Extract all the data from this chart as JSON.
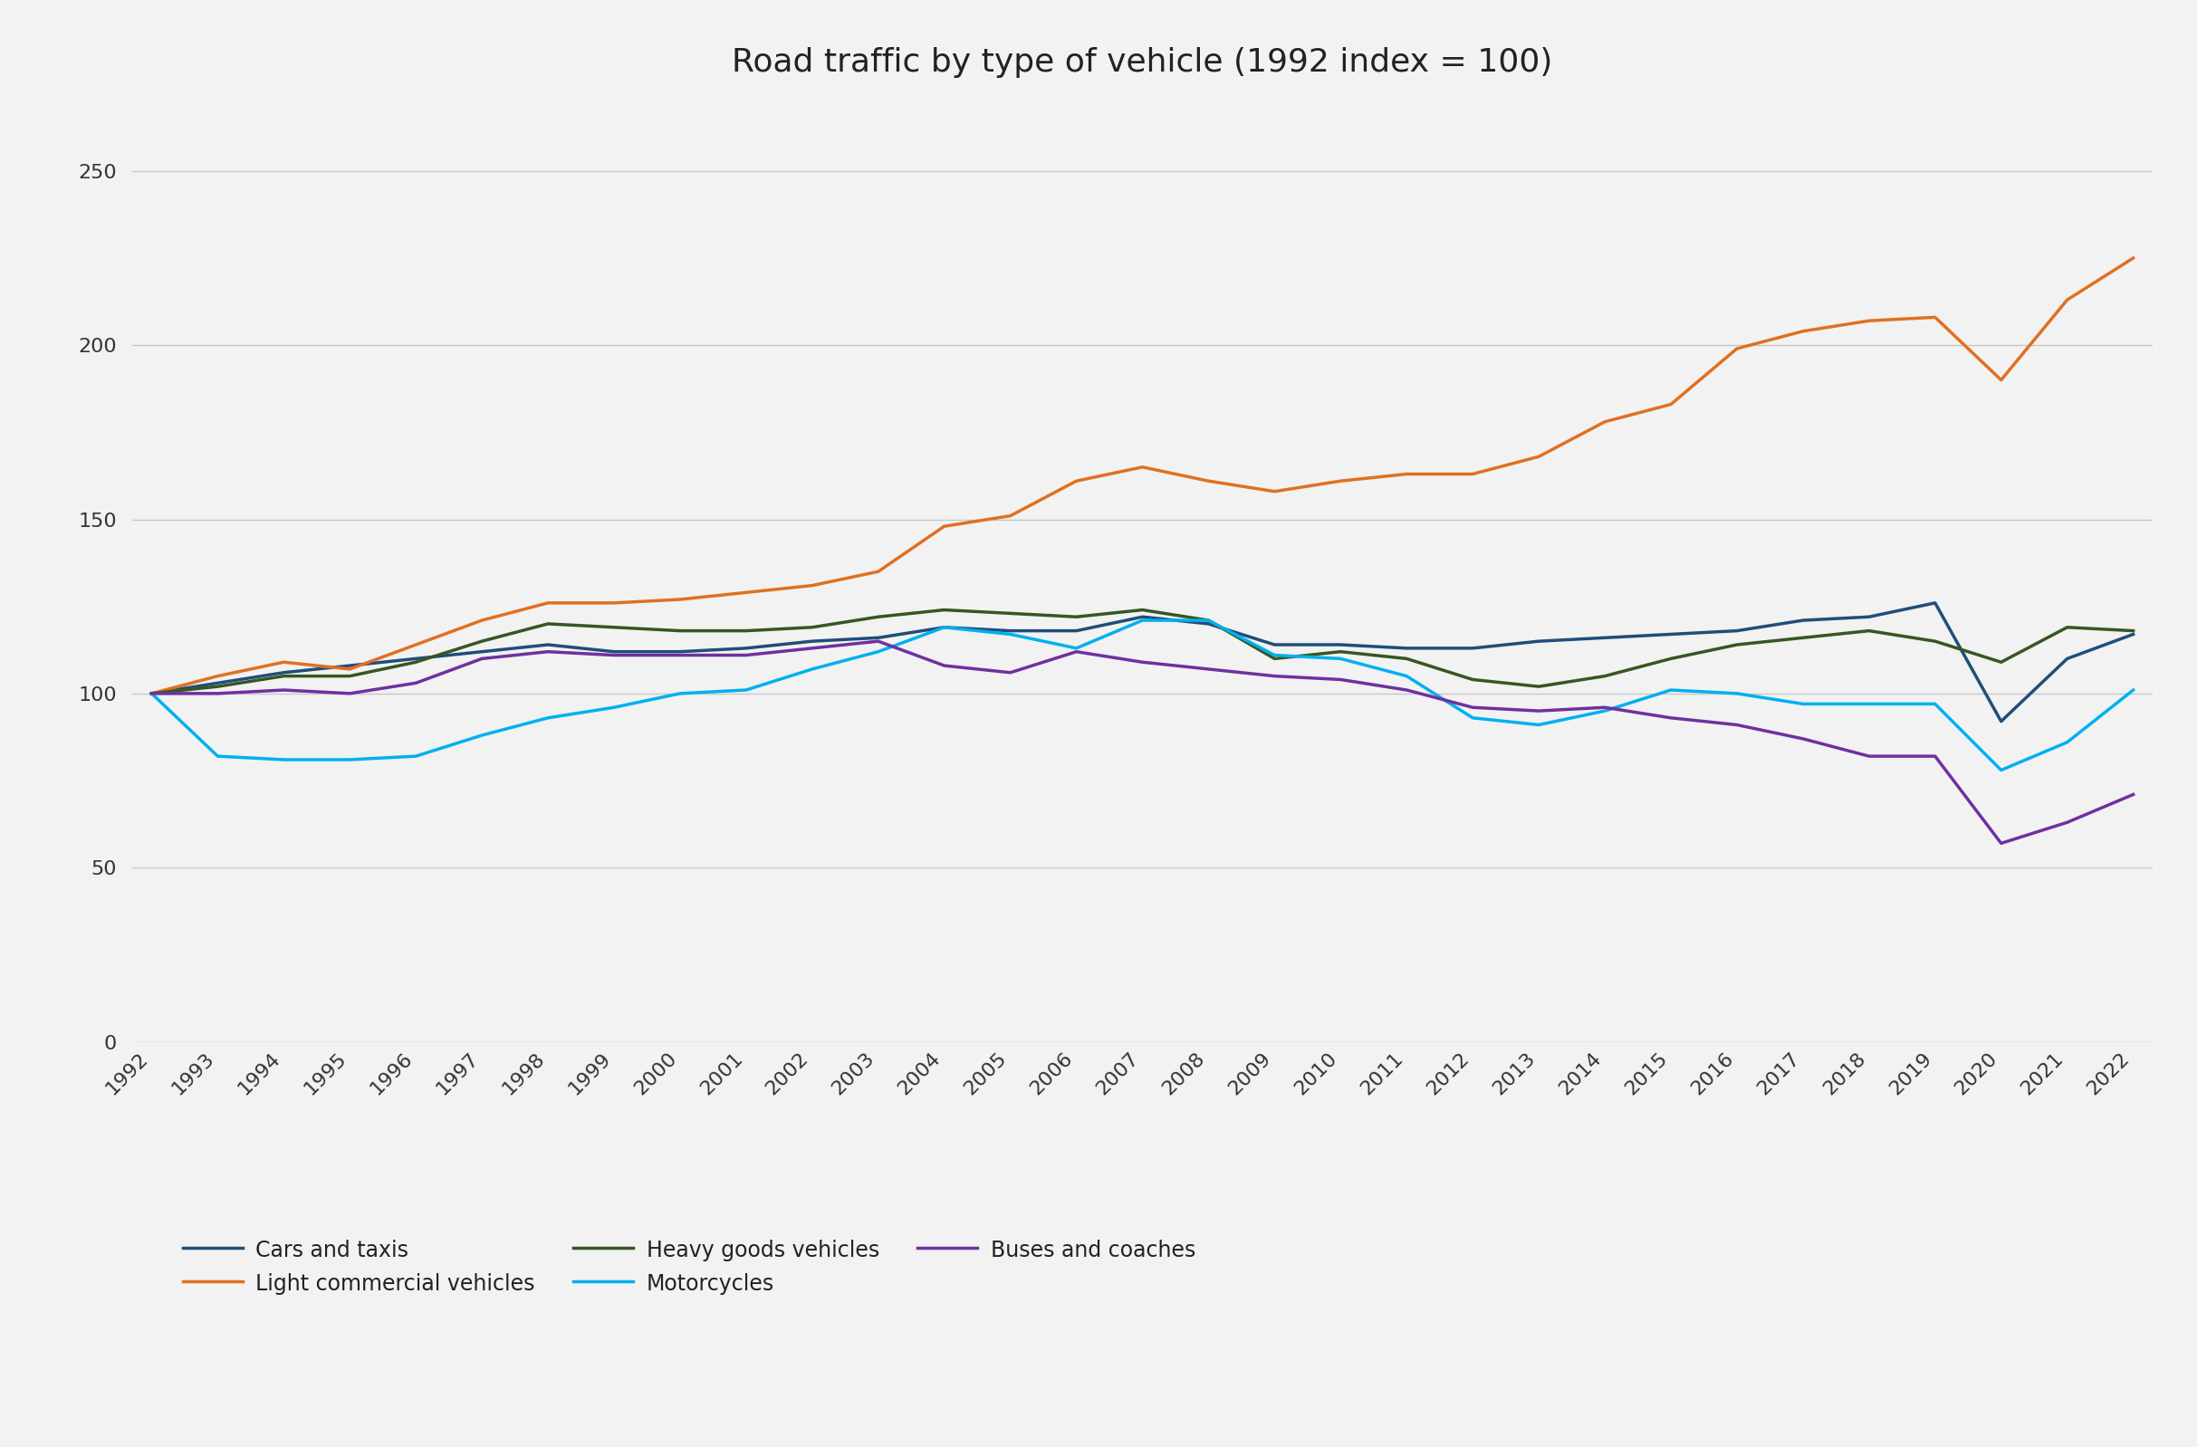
{
  "title": "Road traffic by type of vehicle (1992 index = 100)",
  "years": [
    1992,
    1993,
    1994,
    1995,
    1996,
    1997,
    1998,
    1999,
    2000,
    2001,
    2002,
    2003,
    2004,
    2005,
    2006,
    2007,
    2008,
    2009,
    2010,
    2011,
    2012,
    2013,
    2014,
    2015,
    2016,
    2017,
    2018,
    2019,
    2020,
    2021,
    2022
  ],
  "cars_and_taxis": [
    100,
    103,
    106,
    108,
    110,
    112,
    114,
    112,
    112,
    113,
    115,
    116,
    119,
    118,
    118,
    122,
    120,
    114,
    114,
    113,
    113,
    115,
    116,
    117,
    118,
    121,
    122,
    126,
    92,
    110,
    117
  ],
  "light_commercial": [
    100,
    105,
    109,
    107,
    114,
    121,
    126,
    126,
    127,
    129,
    131,
    135,
    148,
    151,
    161,
    165,
    161,
    158,
    161,
    163,
    163,
    168,
    178,
    183,
    199,
    204,
    207,
    208,
    190,
    213,
    225
  ],
  "heavy_goods": [
    100,
    102,
    105,
    105,
    109,
    115,
    120,
    119,
    118,
    118,
    119,
    122,
    124,
    123,
    122,
    124,
    121,
    110,
    112,
    110,
    104,
    102,
    105,
    110,
    114,
    116,
    118,
    115,
    109,
    119,
    118
  ],
  "motorcycles": [
    100,
    82,
    81,
    81,
    82,
    88,
    93,
    96,
    100,
    101,
    107,
    112,
    119,
    117,
    113,
    121,
    121,
    111,
    110,
    105,
    93,
    91,
    95,
    101,
    100,
    97,
    97,
    97,
    78,
    86,
    101
  ],
  "buses_coaches": [
    100,
    100,
    101,
    100,
    103,
    110,
    112,
    111,
    111,
    111,
    113,
    115,
    108,
    106,
    112,
    109,
    107,
    105,
    104,
    101,
    96,
    95,
    96,
    93,
    91,
    87,
    82,
    82,
    57,
    63,
    71
  ],
  "colors": {
    "cars_and_taxis": "#1f4e79",
    "light_commercial": "#e07020",
    "heavy_goods": "#375623",
    "motorcycles": "#00b0f0",
    "buses_coaches": "#7030a0"
  },
  "legend_labels": {
    "cars_and_taxis": "Cars and taxis",
    "light_commercial": "Light commercial vehicles",
    "heavy_goods": "Heavy goods vehicles",
    "motorcycles": "Motorcycles",
    "buses_coaches": "Buses and coaches"
  },
  "ylim": [
    0,
    270
  ],
  "yticks": [
    0,
    50,
    100,
    150,
    200,
    250
  ],
  "background_color": "#f2f2f2",
  "plot_bg_color": "#f2f2f2",
  "grid_color": "#c8c8c8",
  "title_fontsize": 26,
  "tick_fontsize": 16,
  "legend_fontsize": 17,
  "line_width": 2.5
}
